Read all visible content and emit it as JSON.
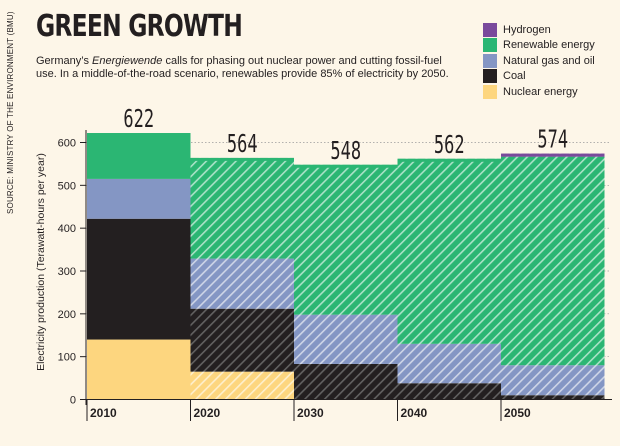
{
  "source_note": "SOURCE: MINISTRY OF THE ENVIRONMENT (BMU)",
  "title": "GREEN GROWTH",
  "subtitle": {
    "before": "Germany’s ",
    "emphasis": "Energiewende",
    "after": " calls for phasing out nuclear power and cutting fossil-fuel use. In a middle-of-the-road scenario, renewables provide 85% of electricity by 2050."
  },
  "colors": {
    "Hydrogen": "#7a4a9c",
    "Renewable energy": "#2bb673",
    "Natural gas and oil": "#8496c4",
    "Coal": "#231f20",
    "Nuclear energy": "#fdd67f",
    "background": "#fdf6e8"
  },
  "chart_data": {
    "type": "bar",
    "stacked": true,
    "categories": [
      "2010",
      "2020",
      "2030",
      "2040",
      "2050"
    ],
    "totals": [
      622,
      564,
      548,
      562,
      574
    ],
    "ylabel": "Electricity production (Terawatt-hours per year)",
    "ylim": [
      0,
      650
    ],
    "yticks": [
      0,
      100,
      200,
      300,
      400,
      500,
      600
    ],
    "legend_position": "top-right",
    "legend_order": [
      "Hydrogen",
      "Renewable energy",
      "Natural gas and oil",
      "Coal",
      "Nuclear energy"
    ],
    "hatched_from": "2020",
    "series": [
      {
        "name": "Nuclear energy",
        "values": [
          140,
          65,
          0,
          0,
          0
        ]
      },
      {
        "name": "Coal",
        "values": [
          282,
          147,
          83,
          38,
          10
        ]
      },
      {
        "name": "Natural gas and oil",
        "values": [
          93,
          117,
          115,
          92,
          70
        ]
      },
      {
        "name": "Renewable energy",
        "values": [
          107,
          235,
          350,
          432,
          487
        ]
      },
      {
        "name": "Hydrogen",
        "values": [
          0,
          0,
          0,
          0,
          7
        ]
      }
    ]
  }
}
